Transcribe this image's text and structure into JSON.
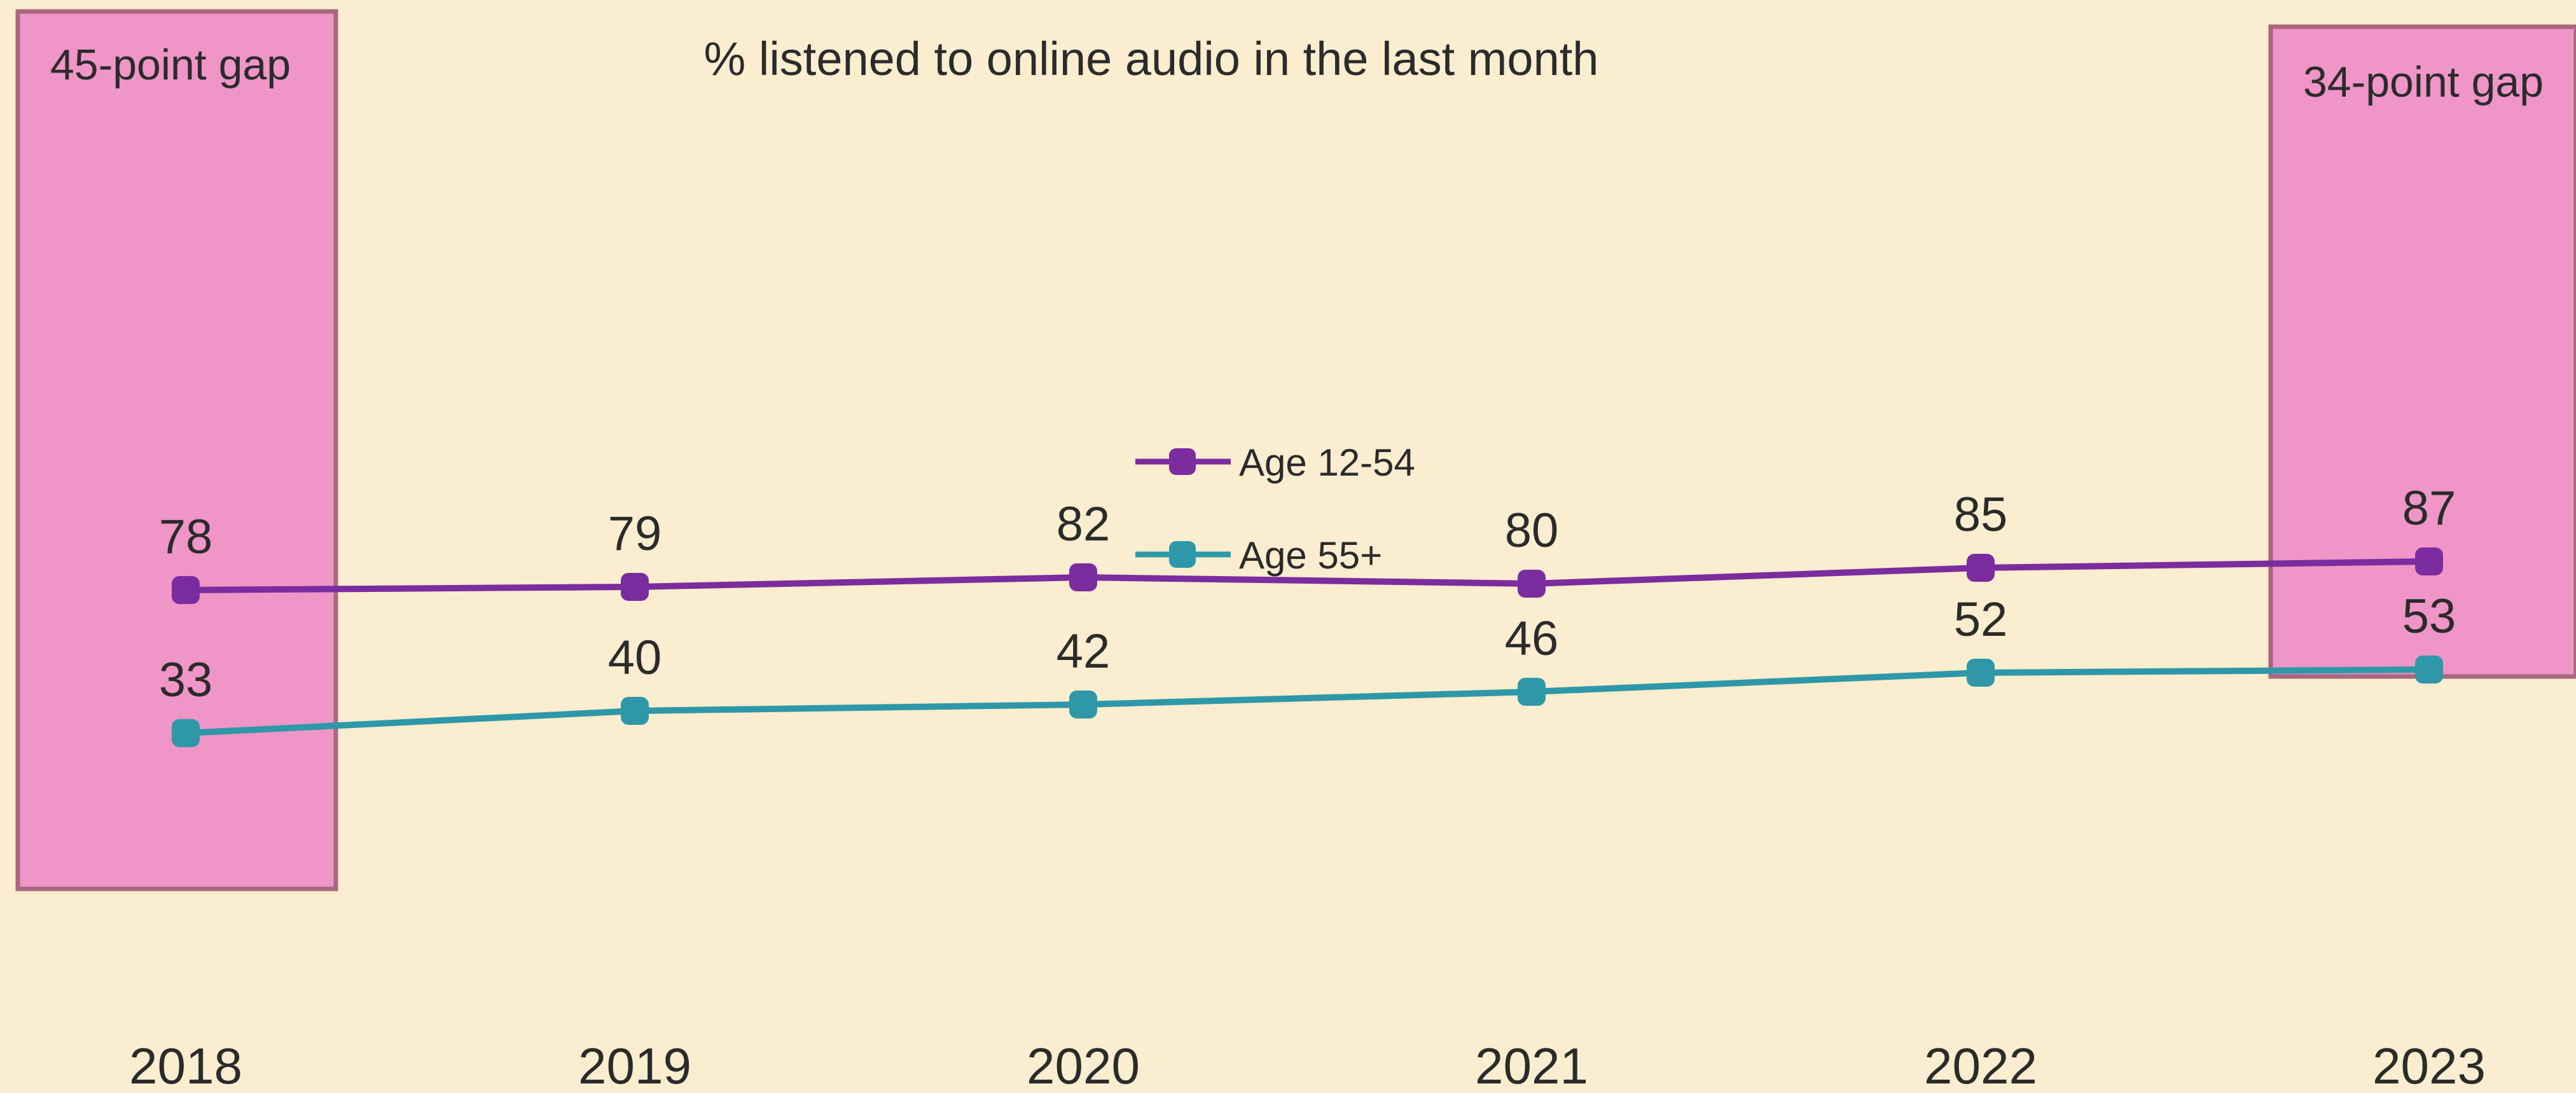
{
  "chart_data": {
    "type": "line",
    "title": "% listened to online audio in the last month",
    "categories": [
      "2018",
      "2019",
      "2020",
      "2021",
      "2022",
      "2023"
    ],
    "series": [
      {
        "name": "Age 12-54",
        "values": [
          78,
          79,
          82,
          80,
          85,
          87
        ],
        "color": "#7B2C9E"
      },
      {
        "name": "Age 55+",
        "values": [
          33,
          40,
          42,
          46,
          52,
          53
        ],
        "color": "#2E98A8"
      }
    ],
    "annotations": [
      {
        "text": "45-point gap",
        "category": "2018"
      },
      {
        "text": "34-point gap",
        "category": "2023"
      }
    ],
    "xlabel": "",
    "ylabel": "",
    "grid": false,
    "legend_position": "center",
    "colors": {
      "background": "#FBEDD0",
      "gap_box_fill": "#EF95C8",
      "gap_box_stroke": "#A8677F"
    }
  }
}
